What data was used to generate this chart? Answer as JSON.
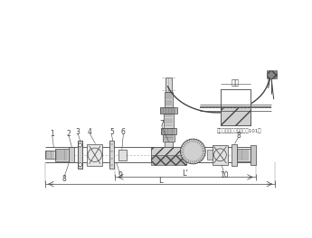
{
  "bg_color": "#ffffff",
  "line_color": "#444444",
  "flow_label": "流向",
  "inset_label": "五轴在外管内装配位置（101）"
}
